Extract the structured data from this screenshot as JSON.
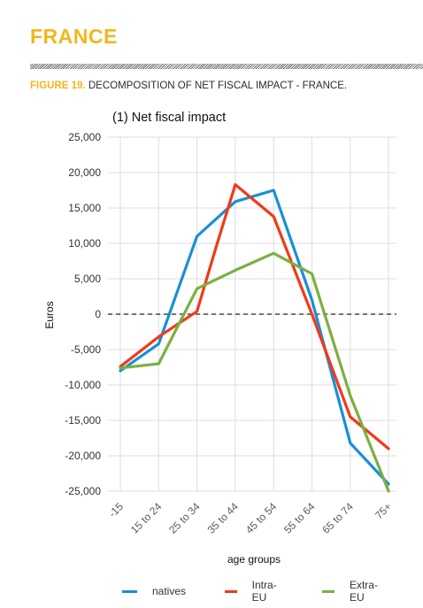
{
  "header": {
    "country": "FRANCE",
    "figure_number": "FIGURE 19.",
    "figure_title": "DECOMPOSITION OF NET FISCAL IMPACT - FRANCE."
  },
  "colors": {
    "accent": "#f2b71d",
    "natives": "#1a8fd6",
    "intra_eu": "#f03a1a",
    "extra_eu": "#7ab040"
  },
  "chart_data": {
    "type": "line",
    "title": "(1) Net fiscal impact",
    "xlabel": "age groups",
    "ylabel": "Euros",
    "categories": [
      "-15",
      "15 to 24",
      "25 to 34",
      "35 to 44",
      "45 to 54",
      "55 to 64",
      "65 to 74",
      "75+"
    ],
    "ylim": [
      -25000,
      25000
    ],
    "yticks": [
      25000,
      20000,
      15000,
      10000,
      5000,
      0,
      -5000,
      -10000,
      -15000,
      -20000,
      -25000
    ],
    "ytick_labels": [
      "25,000",
      "20,000",
      "15,000",
      "10,000",
      "5,000",
      "0",
      "-5,000",
      "-10,000",
      "-15,000",
      "-20,000",
      "-25,000"
    ],
    "grid": true,
    "reference_line": {
      "y": 0,
      "style": "dashed"
    },
    "legend_position": "bottom",
    "series": [
      {
        "name": "natives",
        "color": "#1a8fd6",
        "x": [
          0,
          1,
          2,
          3,
          4,
          5,
          6,
          7
        ],
        "values": [
          -8000,
          -4200,
          11000,
          15900,
          17500,
          2000,
          -18200,
          -24000
        ]
      },
      {
        "name": "Intra-EU",
        "color": "#f03a1a",
        "x": [
          0,
          1,
          2,
          2.5,
          3,
          4,
          5,
          6,
          7
        ],
        "values": [
          -7400,
          -3200,
          400,
          9500,
          18300,
          13800,
          0,
          -14500,
          -19000
        ]
      },
      {
        "name": "Extra-EU",
        "color": "#7ab040",
        "x": [
          0,
          1,
          2,
          3,
          4,
          5,
          6,
          7
        ],
        "values": [
          -7600,
          -7000,
          3600,
          6200,
          8600,
          5700,
          -11500,
          -25000
        ]
      }
    ]
  }
}
